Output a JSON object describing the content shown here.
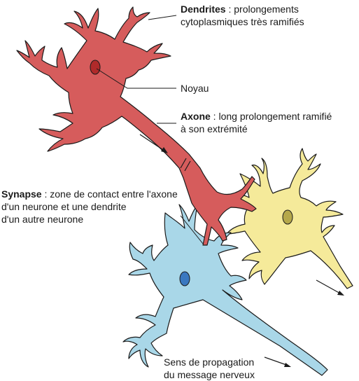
{
  "labels": {
    "dendrites": {
      "term": "Dendrites",
      "text": " : prolongements",
      "line2": "cytoplasmiques très ramifiés"
    },
    "noyau": {
      "text": "Noyau"
    },
    "axone": {
      "term": "Axone",
      "text": " : long prolongement ramifié",
      "line2": "à son extrémité"
    },
    "synapse": {
      "term": "Synapse",
      "text": " : zone de contact entre l'axone",
      "line2": "d'un neurone et une dendrite",
      "line3": "d'un autre neurone"
    },
    "sens": {
      "line1": "Sens de propagation",
      "line2": "du message nerveux"
    }
  },
  "colors": {
    "neuron_red": "#d65c5c",
    "neuron_red_nucleus": "#b02a2a",
    "neuron_blue": "#a9d7e8",
    "neuron_blue_nucleus": "#3a78c0",
    "neuron_yellow": "#f5ea9a",
    "neuron_yellow_nucleus": "#b5a84a"
  }
}
